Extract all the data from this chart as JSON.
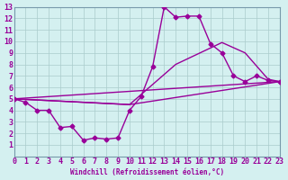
{
  "xlabel": "Windchill (Refroidissement éolien,°C)",
  "xlim": [
    0,
    23
  ],
  "ylim": [
    0,
    13
  ],
  "xticks": [
    0,
    1,
    2,
    3,
    4,
    5,
    6,
    7,
    8,
    9,
    10,
    11,
    12,
    13,
    14,
    15,
    16,
    17,
    18,
    19,
    20,
    21,
    22,
    23
  ],
  "yticks": [
    1,
    2,
    3,
    4,
    5,
    6,
    7,
    8,
    9,
    10,
    11,
    12,
    13
  ],
  "bg_color": "#d4f0f0",
  "grid_color": "#aacccc",
  "line_color": "#990099",
  "curve1_x": [
    0,
    1,
    2,
    3,
    4,
    5,
    6,
    7,
    8,
    9,
    10,
    11,
    12,
    13,
    14,
    15,
    16,
    17,
    18,
    19,
    20,
    21,
    22,
    23
  ],
  "curve1_y": [
    5,
    4.7,
    4.0,
    4.0,
    2.5,
    2.6,
    1.4,
    1.6,
    1.5,
    1.6,
    4.0,
    5.2,
    7.8,
    13.0,
    12.1,
    12.2,
    12.2,
    9.8,
    9.0,
    7.0,
    6.5,
    7.0,
    6.6,
    6.5
  ],
  "curve2_x": [
    0,
    10,
    23
  ],
  "curve2_y": [
    5,
    4.5,
    6.5
  ],
  "curve3_x": [
    0,
    23
  ],
  "curve3_y": [
    5,
    6.5
  ],
  "curve4_x": [
    0,
    10,
    14,
    18,
    20,
    22,
    23
  ],
  "curve4_y": [
    5,
    4.5,
    8.0,
    9.9,
    9.0,
    6.7,
    6.5
  ]
}
